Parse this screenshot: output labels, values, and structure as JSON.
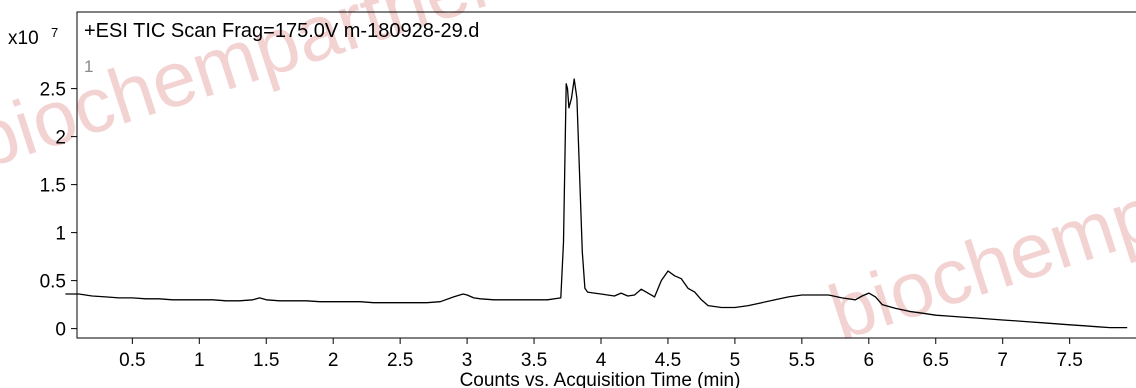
{
  "chart_data": {
    "type": "line",
    "title": "+ESI TIC Scan Frag=175.0V m-180928-29.d",
    "panel_label": "1",
    "y_multiplier_base": "x10",
    "y_multiplier_exp": "7",
    "xlabel": "Counts vs. Acquisition Time (min)",
    "ylabel": "",
    "xlim": [
      0.0,
      7.93
    ],
    "ylim": [
      -0.1,
      2.8
    ],
    "x_ticks": [
      0.5,
      1,
      1.5,
      2,
      2.5,
      3,
      3.5,
      4,
      4.5,
      5,
      5.5,
      6,
      6.5,
      7,
      7.5
    ],
    "x_tick_labels": [
      "0.5",
      "1",
      "1.5",
      "2",
      "2.5",
      "3",
      "3.5",
      "4",
      "4.5",
      "5",
      "5.5",
      "6",
      "6.5",
      "7",
      "7.5"
    ],
    "y_ticks": [
      0,
      0.5,
      1,
      1.5,
      2,
      2.5
    ],
    "y_tick_labels": [
      "0",
      "0.5",
      "1",
      "1.5",
      "2",
      "2.5"
    ],
    "grid": false,
    "legend": "none",
    "line_color": "#000000",
    "watermark": [
      "biochempartner",
      "biochempartner"
    ],
    "series": [
      {
        "x": [
          0.0,
          0.1,
          0.2,
          0.3,
          0.4,
          0.5,
          0.6,
          0.7,
          0.8,
          0.9,
          1.0,
          1.1,
          1.2,
          1.3,
          1.4,
          1.45,
          1.5,
          1.6,
          1.7,
          1.8,
          1.9,
          2.0,
          2.1,
          2.2,
          2.3,
          2.4,
          2.5,
          2.6,
          2.7,
          2.8,
          2.9,
          2.97,
          3.0,
          3.05,
          3.1,
          3.2,
          3.3,
          3.4,
          3.5,
          3.6,
          3.7,
          3.72,
          3.74,
          3.75,
          3.76,
          3.78,
          3.8,
          3.82,
          3.84,
          3.86,
          3.88,
          3.9,
          3.95,
          4.0,
          4.1,
          4.15,
          4.2,
          4.25,
          4.3,
          4.35,
          4.4,
          4.45,
          4.5,
          4.55,
          4.6,
          4.65,
          4.7,
          4.75,
          4.8,
          4.9,
          5.0,
          5.1,
          5.2,
          5.3,
          5.4,
          5.5,
          5.6,
          5.7,
          5.8,
          5.9,
          5.95,
          6.0,
          6.05,
          6.1,
          6.2,
          6.3,
          6.4,
          6.5,
          6.6,
          6.7,
          6.8,
          6.9,
          7.0,
          7.1,
          7.2,
          7.3,
          7.4,
          7.5,
          7.6,
          7.7,
          7.8,
          7.93
        ],
        "y": [
          0.36,
          0.36,
          0.34,
          0.33,
          0.32,
          0.32,
          0.31,
          0.31,
          0.3,
          0.3,
          0.3,
          0.3,
          0.29,
          0.29,
          0.3,
          0.32,
          0.3,
          0.29,
          0.29,
          0.29,
          0.28,
          0.28,
          0.28,
          0.28,
          0.27,
          0.27,
          0.27,
          0.27,
          0.27,
          0.28,
          0.33,
          0.36,
          0.35,
          0.32,
          0.31,
          0.3,
          0.3,
          0.3,
          0.3,
          0.3,
          0.32,
          0.9,
          2.55,
          2.5,
          2.3,
          2.4,
          2.6,
          2.4,
          1.6,
          0.8,
          0.42,
          0.38,
          0.37,
          0.36,
          0.34,
          0.37,
          0.34,
          0.35,
          0.41,
          0.37,
          0.33,
          0.5,
          0.6,
          0.55,
          0.52,
          0.42,
          0.38,
          0.3,
          0.24,
          0.22,
          0.22,
          0.24,
          0.27,
          0.3,
          0.33,
          0.35,
          0.35,
          0.35,
          0.32,
          0.3,
          0.34,
          0.37,
          0.33,
          0.25,
          0.21,
          0.18,
          0.16,
          0.14,
          0.13,
          0.12,
          0.11,
          0.1,
          0.09,
          0.08,
          0.07,
          0.06,
          0.05,
          0.04,
          0.03,
          0.02,
          0.01,
          0.01
        ]
      }
    ]
  }
}
